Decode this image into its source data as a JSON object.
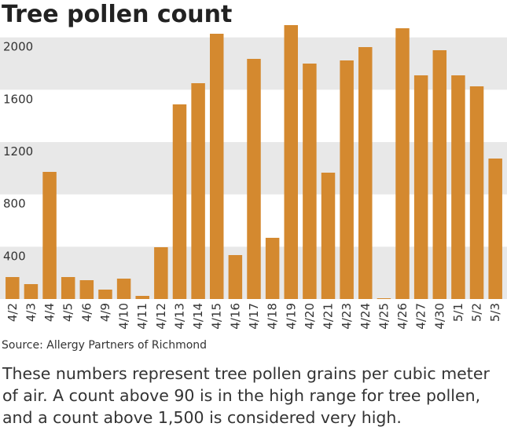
{
  "chart_data": {
    "type": "bar",
    "title": "Tree pollen count",
    "categories": [
      "4/2",
      "4/3",
      "4/4",
      "4/5",
      "4/6",
      "4/9",
      "4/10",
      "4/11",
      "4/12",
      "4/13",
      "4/14",
      "4/15",
      "4/16",
      "4/17",
      "4/18",
      "4/19",
      "4/20",
      "4/21",
      "4/23",
      "4/24",
      "4/25",
      "4/26",
      "4/27",
      "4/30",
      "5/1",
      "5/2",
      "5/3"
    ],
    "values": [
      168,
      114,
      972,
      168,
      144,
      72,
      156,
      24,
      396,
      1488,
      1650,
      2028,
      336,
      1836,
      468,
      2094,
      1800,
      966,
      1824,
      1926,
      6,
      2070,
      1710,
      1902,
      1710,
      1626,
      1074
    ],
    "color": "#d4892f",
    "ylim": [
      0,
      2100
    ],
    "yticks": [
      400,
      800,
      1200,
      1600,
      2000
    ],
    "grid": true,
    "source": "Source: Allergy Partners of Richmond",
    "note": "These numbers represent tree pollen grains per cubic meter of air. A count above 90 is in the high range for tree pollen, and a count above 1,500 is considered very high."
  }
}
